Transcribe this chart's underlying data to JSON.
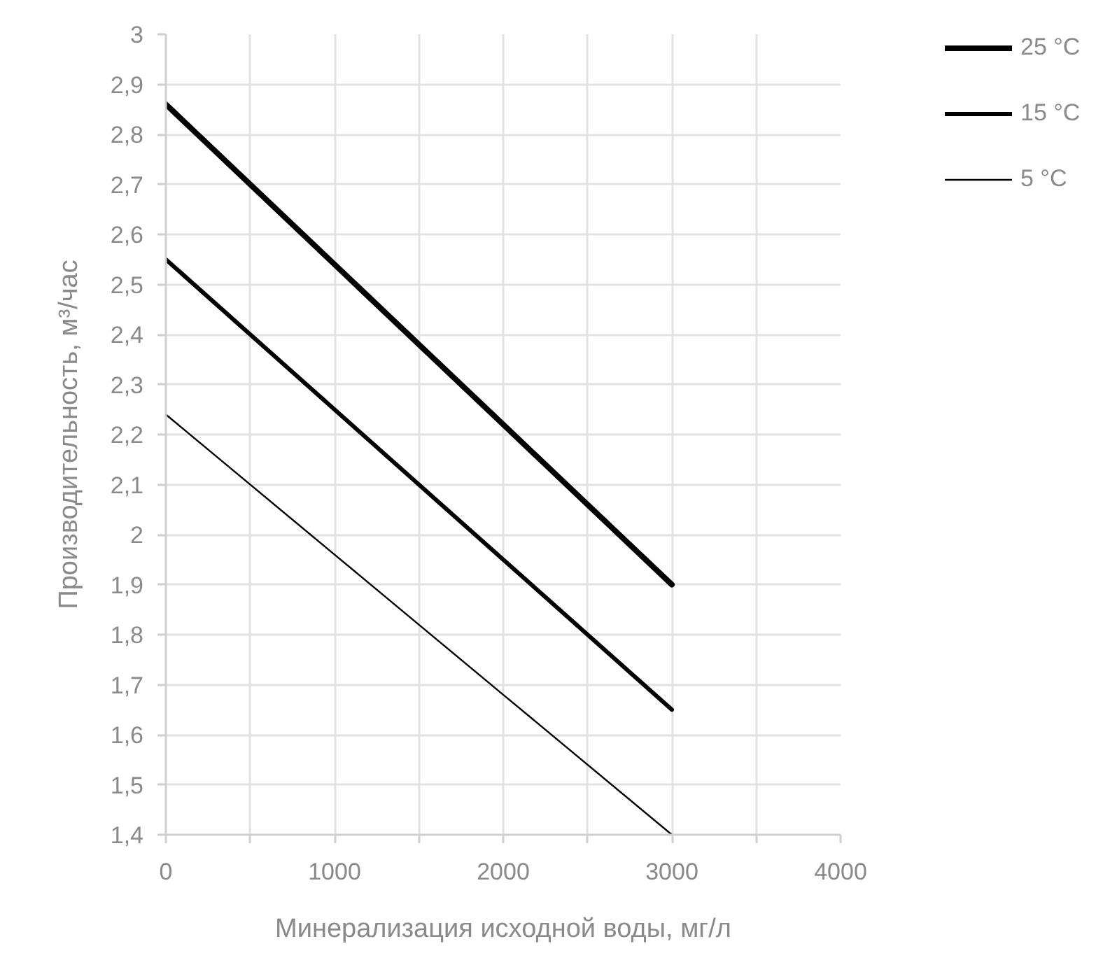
{
  "chart_data": {
    "type": "line",
    "xlabel": "Минерализация исходной воды, мг/л",
    "ylabel": "Производительность, м³/час",
    "x": [
      0,
      1000,
      2000,
      3000
    ],
    "series": [
      {
        "name": "25 °C",
        "color": "#000000",
        "values": [
          2.86,
          2.54,
          2.22,
          1.9
        ]
      },
      {
        "name": "15 °C",
        "color": "#000000",
        "values": [
          2.55,
          2.25,
          1.95,
          1.65
        ]
      },
      {
        "name": "5 °C",
        "color": "#000000",
        "values": [
          2.24,
          1.96,
          1.68,
          1.4
        ]
      }
    ],
    "xlim": [
      0,
      4000
    ],
    "xticks": [
      0,
      {
        "value": 500,
        "label": null
      },
      1000,
      {
        "value": 1500,
        "label": null
      },
      2000,
      {
        "value": 2500,
        "label": null
      },
      3000,
      {
        "value": 3500,
        "label": null
      },
      4000
    ],
    "ylim": [
      1.4,
      3
    ],
    "yticks": [
      {
        "value": 1.4,
        "label": "1,4"
      },
      {
        "value": 1.5,
        "label": "1,5"
      },
      {
        "value": 1.6,
        "label": "1,6"
      },
      {
        "value": 1.7,
        "label": "1,7"
      },
      {
        "value": 1.8,
        "label": "1,8"
      },
      {
        "value": 1.9,
        "label": "1,9"
      },
      2,
      {
        "value": 2.1,
        "label": "2,1"
      },
      {
        "value": 2.2,
        "label": "2,2"
      },
      {
        "value": 2.3,
        "label": "2,3"
      },
      {
        "value": 2.4,
        "label": "2,4"
      },
      {
        "value": 2.5,
        "label": "2,5"
      },
      {
        "value": 2.6,
        "label": "2,6"
      },
      {
        "value": 2.7,
        "label": "2,7"
      },
      {
        "value": 2.8,
        "label": "2,8"
      },
      {
        "value": 2.9,
        "label": "2,9"
      },
      3
    ],
    "grid": true,
    "legend": "top right"
  }
}
